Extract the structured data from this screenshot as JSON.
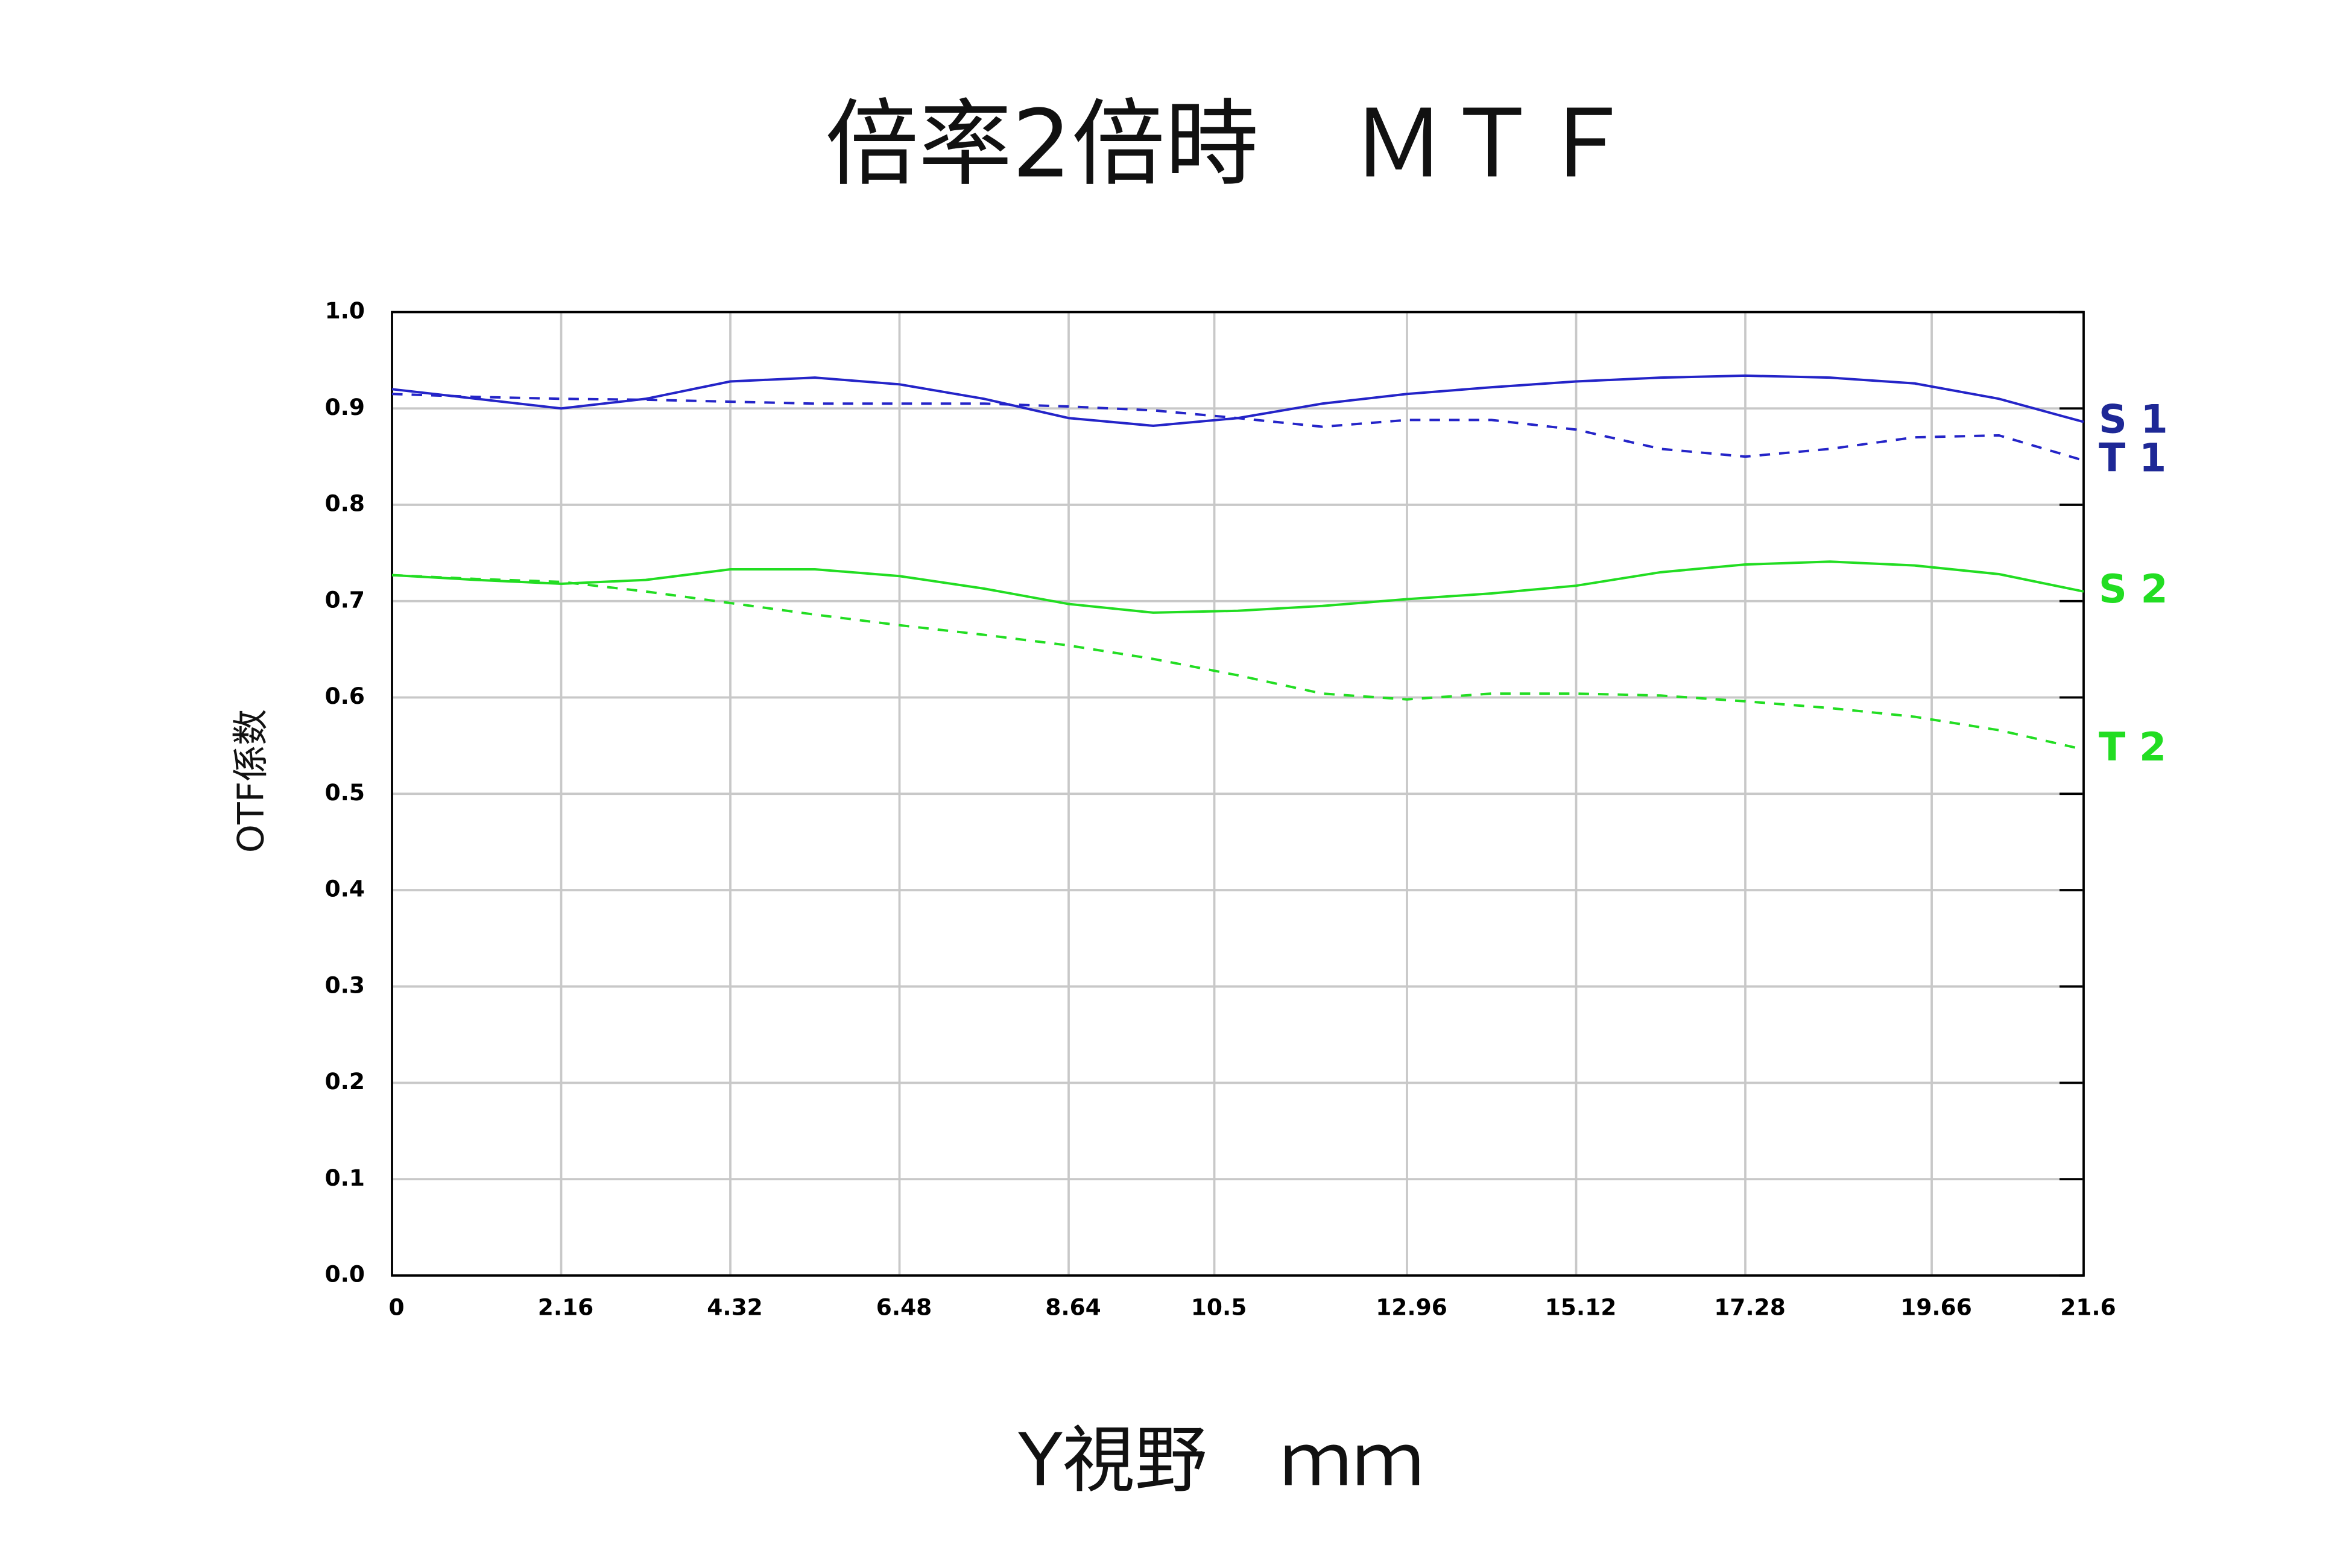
{
  "chart_data": {
    "type": "line",
    "title": "倍率2倍時　ＭＴＦ",
    "x_label": "Y視野　ｍｍ",
    "y_label": "OTF係数",
    "x": [
      0,
      1.08,
      2.16,
      3.24,
      4.32,
      5.4,
      6.48,
      7.56,
      8.64,
      9.72,
      10.8,
      11.88,
      12.96,
      14.04,
      15.12,
      16.2,
      17.28,
      18.36,
      19.44,
      20.52,
      21.6
    ],
    "series": [
      {
        "name": "S 1",
        "color": "#2424c8",
        "label_color": "#1e2896",
        "linestyle": "solid",
        "values": [
          0.92,
          0.91,
          0.9,
          0.91,
          0.928,
          0.932,
          0.925,
          0.91,
          0.89,
          0.882,
          0.89,
          0.905,
          0.915,
          0.922,
          0.928,
          0.932,
          0.934,
          0.932,
          0.926,
          0.91,
          0.886
        ]
      },
      {
        "name": "T 1",
        "color": "#2424c8",
        "label_color": "#1e2896",
        "linestyle": "dashed",
        "values": [
          0.915,
          0.912,
          0.91,
          0.909,
          0.907,
          0.905,
          0.905,
          0.905,
          0.902,
          0.898,
          0.89,
          0.881,
          0.888,
          0.888,
          0.878,
          0.858,
          0.85,
          0.858,
          0.87,
          0.872,
          0.846
        ]
      },
      {
        "name": "S 2",
        "color": "#22dd22",
        "label_color": "#22dd22",
        "linestyle": "solid",
        "values": [
          0.727,
          0.722,
          0.718,
          0.722,
          0.733,
          0.733,
          0.726,
          0.713,
          0.697,
          0.688,
          0.69,
          0.695,
          0.702,
          0.708,
          0.716,
          0.73,
          0.738,
          0.741,
          0.737,
          0.728,
          0.71
        ]
      },
      {
        "name": "T 2",
        "color": "#22dd22",
        "label_color": "#22dd22",
        "linestyle": "dashed",
        "values": [
          0.727,
          0.723,
          0.72,
          0.71,
          0.698,
          0.686,
          0.675,
          0.665,
          0.654,
          0.64,
          0.623,
          0.604,
          0.598,
          0.604,
          0.604,
          0.602,
          0.596,
          0.589,
          0.58,
          0.566,
          0.546
        ]
      }
    ],
    "xlim": [
      0,
      21.6
    ],
    "xticks": [
      0,
      2.16,
      4.32,
      6.48,
      8.64,
      10.5,
      12.96,
      15.12,
      17.28,
      19.66,
      21.6
    ],
    "ylim": [
      0,
      1
    ],
    "yticks": [
      {
        "value": 0,
        "label": "0.0"
      },
      0.1,
      0.2,
      0.3,
      0.4,
      0.5,
      0.6,
      0.7,
      0.8,
      0.9,
      {
        "value": 1,
        "label": "1.0"
      }
    ],
    "grid": true
  }
}
